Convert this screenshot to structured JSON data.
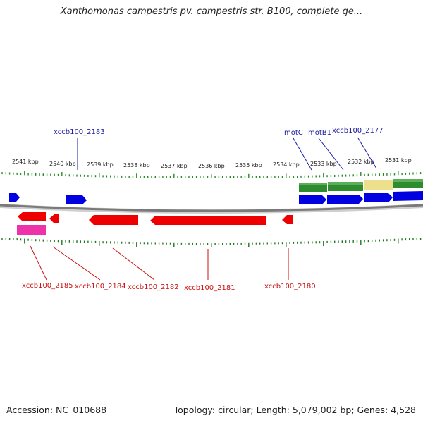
{
  "title": "Xanthomonas campestris pv. campestris str. B100, complete ge...",
  "footer": {
    "accession": "Accession: NC_010688",
    "summary": "Topology: circular; Length: 5,079,002 bp; Genes: 4,528"
  },
  "colors": {
    "upper_tick": "#2a8a2a",
    "lower_tick": "#1f7a1f",
    "backbone": "#7a7a7a",
    "forward_gene": "#0000e0",
    "reverse_gene": "#ee0000",
    "pink_feature": "#ee33aa",
    "green_feature": "#2e8b2e",
    "yellow_feature": "#ece08c",
    "upper_label": "#1a1aa0",
    "lower_label": "#cc1111"
  },
  "scale_labels": [
    "2541 kbp",
    "2540 kbp",
    "2539 kbp",
    "2538 kbp",
    "2537 kbp",
    "2536 kbp",
    "2535 kbp",
    "2534 kbp",
    "2533 kbp",
    "2532 kbp",
    "2531 kbp"
  ],
  "upper_genes": [
    "xccb100_2183",
    "motC",
    "motB1",
    "xccb100_2177"
  ],
  "lower_genes": [
    "xccb100_2185",
    "xccb100_2184",
    "xccb100_2182",
    "xccb100_2181",
    "xccb100_2180"
  ]
}
